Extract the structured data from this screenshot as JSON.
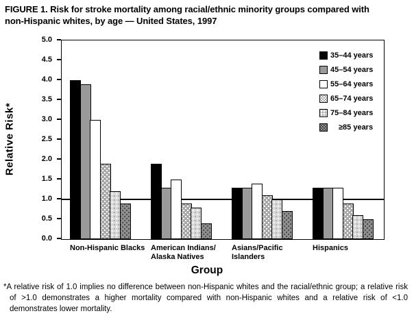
{
  "figure": {
    "title": "FIGURE 1. Risk for stroke mortality among racial/ethnic minority groups compared with\nnon-Hispanic whites, by age — United States, 1997",
    "footnote": "*A relative risk of 1.0 implies no difference between non-Hispanic whites and the racial/ethnic group; a relative risk of >1.0 demonstrates a higher mortality compared with non-Hispanic whites and a relative risk of <1.0 demonstrates lower mortality."
  },
  "chart_data": {
    "type": "bar",
    "title": "Risk for stroke mortality among racial/ethnic minority groups compared with non-Hispanic whites, by age — United States, 1997",
    "xlabel": "Group",
    "ylabel": "Relative Risk*",
    "ylim": [
      0.0,
      5.0
    ],
    "ytick_step": 0.5,
    "yticks": [
      "0.0",
      "0.5",
      "1.0",
      "1.5",
      "2.0",
      "2.5",
      "3.0",
      "3.5",
      "4.0",
      "4.5",
      "5.0"
    ],
    "reference_line": 1.0,
    "grid": false,
    "legend_position": "top-right-inside",
    "categories": [
      "Non-Hispanic Blacks",
      "American Indians/\nAlaska Natives",
      "Asians/Pacific\nIslanders",
      "Hispanics"
    ],
    "series": [
      {
        "name": "35–44 years",
        "fill": "#000000",
        "pattern": "solid",
        "values": [
          4.0,
          1.9,
          1.3,
          1.3
        ]
      },
      {
        "name": "45–54 years",
        "fill": "#9a9a9a",
        "pattern": "solid",
        "values": [
          3.9,
          1.3,
          1.3,
          1.3
        ]
      },
      {
        "name": "55–64 years",
        "fill": "#ffffff",
        "pattern": "solid",
        "values": [
          3.0,
          1.5,
          1.4,
          1.3
        ]
      },
      {
        "name": "65–74 years",
        "fill": "#a8a8a8",
        "pattern": "dots-white",
        "values": [
          1.9,
          0.9,
          1.1,
          0.9
        ]
      },
      {
        "name": "75–84 years",
        "fill": "#d8d8d8",
        "pattern": "dots-light",
        "values": [
          1.2,
          0.8,
          1.0,
          0.6
        ]
      },
      {
        "name": "≥85 years",
        "fill": "#8e8e8e",
        "pattern": "dots-dark",
        "values": [
          0.9,
          0.4,
          0.7,
          0.5
        ]
      }
    ]
  }
}
